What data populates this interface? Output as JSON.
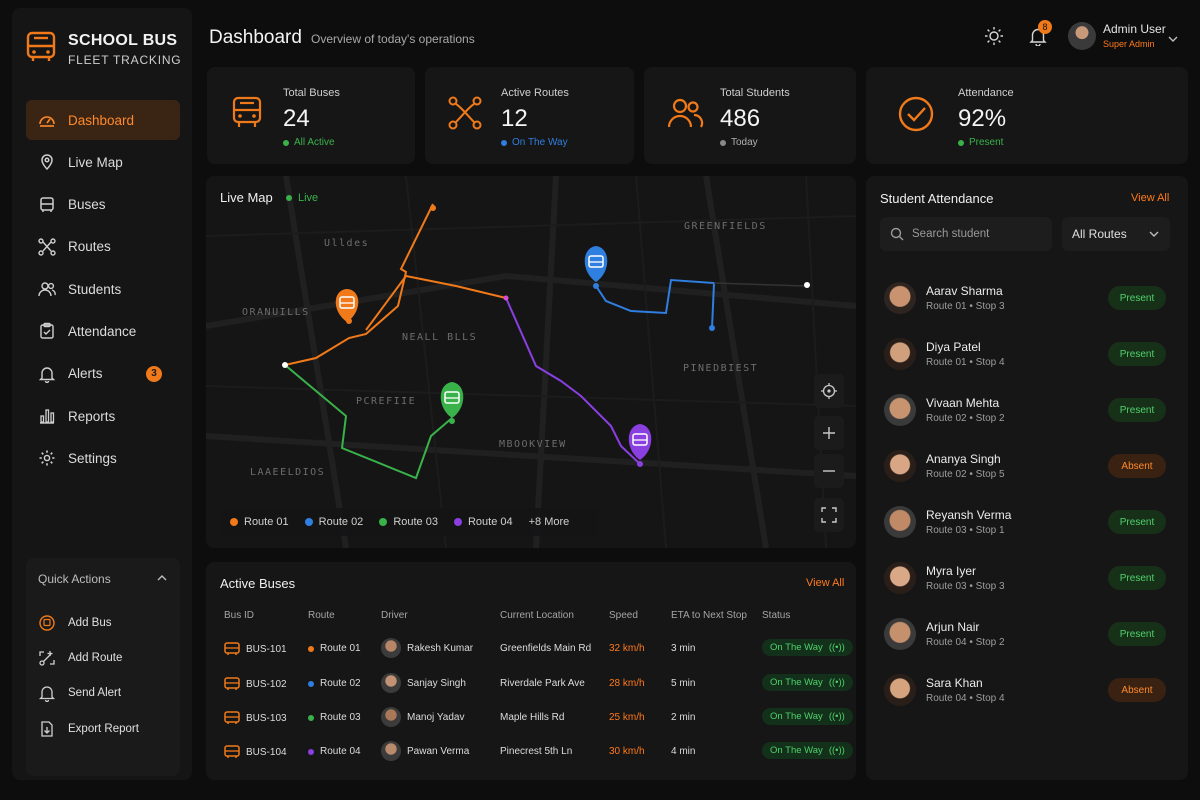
{
  "brand": {
    "line1": "SCHOOL BUS",
    "line2": "FLEET TRACKING"
  },
  "nav": [
    {
      "label": "Dashboard",
      "icon": "dashboard-icon",
      "active": true
    },
    {
      "label": "Live Map",
      "icon": "map-pin-icon"
    },
    {
      "label": "Buses",
      "icon": "bus-icon"
    },
    {
      "label": "Routes",
      "icon": "routes-icon"
    },
    {
      "label": "Students",
      "icon": "students-icon"
    },
    {
      "label": "Attendance",
      "icon": "attendance-icon"
    },
    {
      "label": "Alerts",
      "icon": "bell-icon",
      "badge": "3"
    },
    {
      "label": "Reports",
      "icon": "reports-icon"
    },
    {
      "label": "Settings",
      "icon": "gear-icon"
    }
  ],
  "quick_actions": {
    "title": "Quick Actions",
    "items": [
      {
        "label": "Add Bus",
        "icon": "add-bus-icon"
      },
      {
        "label": "Add Route",
        "icon": "add-route-icon"
      },
      {
        "label": "Send Alert",
        "icon": "send-alert-icon"
      },
      {
        "label": "Export Report",
        "icon": "export-report-icon"
      }
    ]
  },
  "header": {
    "title": "Dashboard",
    "subtitle": "Overview of today's operations",
    "notification_count": "8",
    "user_name": "Admin User",
    "user_role": "Super Admin"
  },
  "stats": [
    {
      "label": "Total Buses",
      "value": "24",
      "sub": "All Active",
      "sub_color": "#39b24a",
      "icon": "bus-icon"
    },
    {
      "label": "Active Routes",
      "value": "12",
      "sub": "On The Way",
      "sub_color": "#2f7fe0",
      "icon": "routes-icon"
    },
    {
      "label": "Total Students",
      "value": "486",
      "sub": "Today",
      "sub_color": "#9a9a9a",
      "icon": "students-icon"
    },
    {
      "label": "Attendance",
      "value": "92%",
      "sub": "Present",
      "sub_color": "#39b24a",
      "icon": "check-circle-icon"
    }
  ],
  "map": {
    "title": "Live Map",
    "live_label": "Live",
    "area_labels": [
      "GREENFIELDS",
      "Ulldes",
      "ORANUILLS",
      "NEALL BLLS",
      "PINEDBIEST",
      "PCREFIIE",
      "MBOOKVIEW",
      "LAAEELDIOS"
    ],
    "legend": [
      {
        "label": "Route 01",
        "color": "#f07a1a"
      },
      {
        "label": "Route 02",
        "color": "#2f7fe0"
      },
      {
        "label": "Route 03",
        "color": "#39b24a"
      },
      {
        "label": "Route 04",
        "color": "#8a3fe0"
      }
    ],
    "more_label": "+8 More"
  },
  "active_buses": {
    "title": "Active Buses",
    "view_all": "View All",
    "columns": [
      "Bus ID",
      "Route",
      "Driver",
      "Current Location",
      "Speed",
      "ETA to Next Stop",
      "Status"
    ],
    "rows": [
      {
        "bus_id": "BUS-101",
        "route": "Route 01",
        "route_color": "#f07a1a",
        "driver": "Rakesh Kumar",
        "location": "Greenfields Main Rd",
        "speed": "32 km/h",
        "eta": "3 min",
        "status": "On The Way"
      },
      {
        "bus_id": "BUS-102",
        "route": "Route 02",
        "route_color": "#2f7fe0",
        "driver": "Sanjay Singh",
        "location": "Riverdale Park Ave",
        "speed": "28 km/h",
        "eta": "5 min",
        "status": "On The Way"
      },
      {
        "bus_id": "BUS-103",
        "route": "Route 03",
        "route_color": "#39b24a",
        "driver": "Manoj Yadav",
        "location": "Maple Hills Rd",
        "speed": "25 km/h",
        "eta": "2 min",
        "status": "On The Way"
      },
      {
        "bus_id": "BUS-104",
        "route": "Route 04",
        "route_color": "#8a3fe0",
        "driver": "Pawan Verma",
        "location": "Pinecrest 5th Ln",
        "speed": "30 km/h",
        "eta": "4 min",
        "status": "On The Way"
      }
    ]
  },
  "attendance": {
    "title": "Student Attendance",
    "view_all": "View All",
    "search_placeholder": "Search student",
    "route_filter": "All Routes",
    "students": [
      {
        "name": "Aarav Sharma",
        "route": "Route 01 • Stop 3",
        "status": "Present"
      },
      {
        "name": "Diya Patel",
        "route": "Route 01 • Stop 4",
        "status": "Present"
      },
      {
        "name": "Vivaan Mehta",
        "route": "Route 02 • Stop 2",
        "status": "Present"
      },
      {
        "name": "Ananya Singh",
        "route": "Route 02 • Stop 5",
        "status": "Absent"
      },
      {
        "name": "Reyansh Verma",
        "route": "Route 03 • Stop 1",
        "status": "Present"
      },
      {
        "name": "Myra Iyer",
        "route": "Route 03 • Stop 3",
        "status": "Present"
      },
      {
        "name": "Arjun Nair",
        "route": "Route 04 • Stop 2",
        "status": "Present"
      },
      {
        "name": "Sara Khan",
        "route": "Route 04 • Stop 4",
        "status": "Absent"
      }
    ]
  },
  "colors": {
    "accent": "#f07a1a",
    "present": "#4fd16b",
    "absent": "#ff8a2a",
    "blue": "#2f7fe0",
    "purple": "#8a3fe0"
  }
}
